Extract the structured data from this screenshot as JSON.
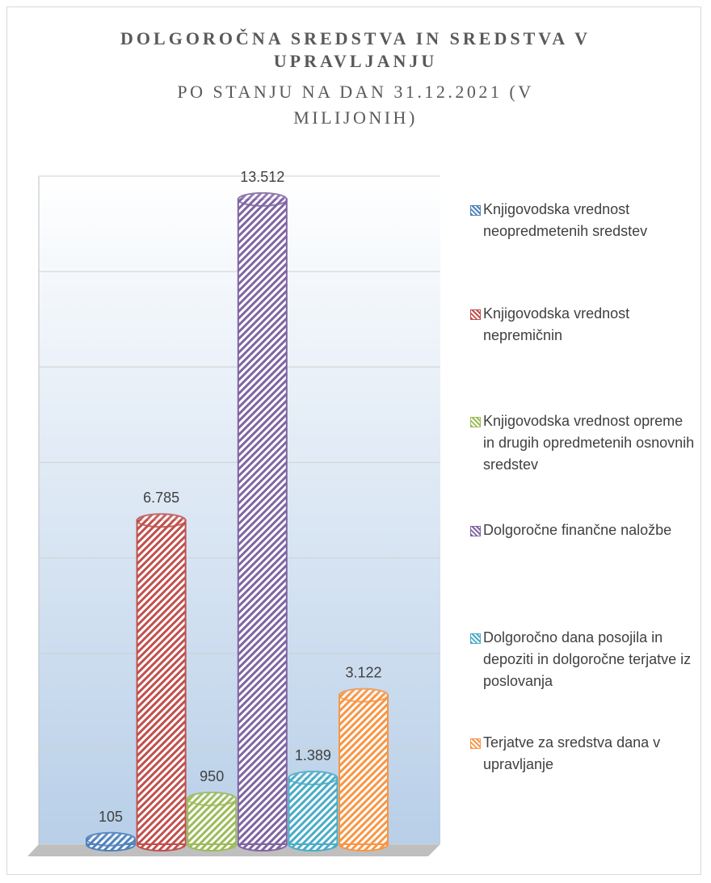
{
  "chart_data": {
    "type": "bar",
    "title": "DOLGOROČNA SREDSTVA IN SREDSTVA V UPRAVLJANJU",
    "subtitle": "PO STANJU NA DAN 31.12.2021 (V MILIJONIH)",
    "ylim": [
      0,
      14000
    ],
    "yticks": [
      0,
      2000,
      4000,
      6000,
      8000,
      10000,
      12000,
      14000
    ],
    "grid": true,
    "series": [
      {
        "name": "Knjigovodska vrednost neopredmetenih sredstev",
        "color": "#4f81bd",
        "values": [
          105
        ],
        "value_labels": [
          "105"
        ]
      },
      {
        "name": "Knjigovodska vrednost nepremičnin",
        "color": "#c0504d",
        "values": [
          6785
        ],
        "value_labels": [
          "6.785"
        ]
      },
      {
        "name": "Knjigovodska vrednost opreme in drugih opredmetenih osnovnih sredstev",
        "color": "#9bbb59",
        "values": [
          950
        ],
        "value_labels": [
          "950"
        ]
      },
      {
        "name": "Dolgoročne finančne naložbe",
        "color": "#8064a2",
        "values": [
          13512
        ],
        "value_labels": [
          "13.512"
        ]
      },
      {
        "name": "Dolgoročno dana posojila in depoziti in dolgoročne terjatve iz poslovanja",
        "color": "#4bacc6",
        "values": [
          1389
        ],
        "value_labels": [
          "1.389"
        ]
      },
      {
        "name": "Terjatve za sredstva dana v upravljanje",
        "color": "#f79646",
        "values": [
          3122
        ],
        "value_labels": [
          "3.122"
        ]
      }
    ]
  }
}
